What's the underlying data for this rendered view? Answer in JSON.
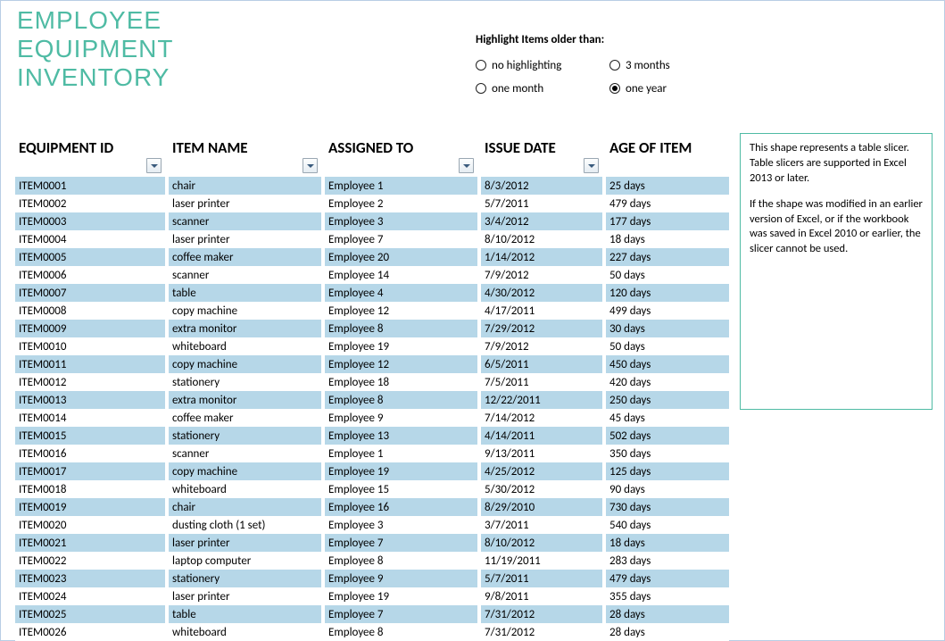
{
  "title_lines": [
    "EMPLOYEE",
    "EQUIPMENT",
    "INVENTORY"
  ],
  "highlight": {
    "label": "Highlight Items older than:",
    "options": [
      {
        "label": "no highlighting",
        "selected": false
      },
      {
        "label": "3 months",
        "selected": false
      },
      {
        "label": "one month",
        "selected": false
      },
      {
        "label": "one year",
        "selected": true
      }
    ]
  },
  "columns": [
    {
      "label": "EQUIPMENT ID",
      "filter": true
    },
    {
      "label": "ITEM NAME",
      "filter": true
    },
    {
      "label": "ASSIGNED TO",
      "filter": true
    },
    {
      "label": "ISSUE DATE",
      "filter": true
    },
    {
      "label": "AGE OF ITEM",
      "filter": false
    }
  ],
  "rows": [
    [
      "ITEM0001",
      "chair",
      "Employee 1",
      "8/3/2012",
      "25 days"
    ],
    [
      "ITEM0002",
      "laser printer",
      "Employee 2",
      "5/7/2011",
      "479 days"
    ],
    [
      "ITEM0003",
      "scanner",
      "Employee 3",
      "3/4/2012",
      "177 days"
    ],
    [
      "ITEM0004",
      "laser printer",
      "Employee 7",
      "8/10/2012",
      "18 days"
    ],
    [
      "ITEM0005",
      "coffee maker",
      "Employee 20",
      "1/14/2012",
      "227 days"
    ],
    [
      "ITEM0006",
      "scanner",
      "Employee 14",
      "7/9/2012",
      "50 days"
    ],
    [
      "ITEM0007",
      "table",
      "Employee 4",
      "4/30/2012",
      "120 days"
    ],
    [
      "ITEM0008",
      "copy machine",
      "Employee 12",
      "4/17/2011",
      "499 days"
    ],
    [
      "ITEM0009",
      "extra monitor",
      "Employee 8",
      "7/29/2012",
      "30 days"
    ],
    [
      "ITEM0010",
      "whiteboard",
      "Employee 19",
      "7/9/2012",
      "50 days"
    ],
    [
      "ITEM0011",
      "copy machine",
      "Employee 12",
      "6/5/2011",
      "450 days"
    ],
    [
      "ITEM0012",
      "stationery",
      "Employee 18",
      "7/5/2011",
      "420 days"
    ],
    [
      "ITEM0013",
      "extra monitor",
      "Employee 8",
      "12/22/2011",
      "250 days"
    ],
    [
      "ITEM0014",
      "coffee maker",
      "Employee 9",
      "7/14/2012",
      "45 days"
    ],
    [
      "ITEM0015",
      "stationery",
      "Employee 13",
      "4/14/2011",
      "502 days"
    ],
    [
      "ITEM0016",
      "scanner",
      "Employee 1",
      "9/13/2011",
      "350 days"
    ],
    [
      "ITEM0017",
      "copy machine",
      "Employee 19",
      "4/25/2012",
      "125 days"
    ],
    [
      "ITEM0018",
      "whiteboard",
      "Employee 15",
      "5/30/2012",
      "90 days"
    ],
    [
      "ITEM0019",
      "chair",
      "Employee 16",
      "8/29/2010",
      "730 days"
    ],
    [
      "ITEM0020",
      "dusting cloth (1 set)",
      "Employee 3",
      "3/7/2011",
      "540 days"
    ],
    [
      "ITEM0021",
      "laser printer",
      "Employee 7",
      "8/10/2012",
      "18 days"
    ],
    [
      "ITEM0022",
      "laptop computer",
      "Employee 8",
      "11/19/2011",
      "283 days"
    ],
    [
      "ITEM0023",
      "stationery",
      "Employee 9",
      "5/7/2011",
      "479 days"
    ],
    [
      "ITEM0024",
      "laser printer",
      "Employee 19",
      "9/8/2011",
      "355 days"
    ],
    [
      "ITEM0025",
      "table",
      "Employee 7",
      "7/31/2012",
      "28 days"
    ],
    [
      "ITEM0026",
      "whiteboard",
      "Employee 8",
      "7/31/2012",
      "28 days"
    ]
  ],
  "slicer": {
    "para1": "This shape represents a table slicer. Table slicers are supported in Excel 2013 or later.",
    "para2": "If the shape was modified in an earlier version of Excel, or if the workbook was saved in Excel 2010 or earlier, the slicer cannot be used."
  },
  "colors": {
    "accent": "#4fbba4",
    "band": "#b6d7e8",
    "border": "#b9cde5"
  }
}
